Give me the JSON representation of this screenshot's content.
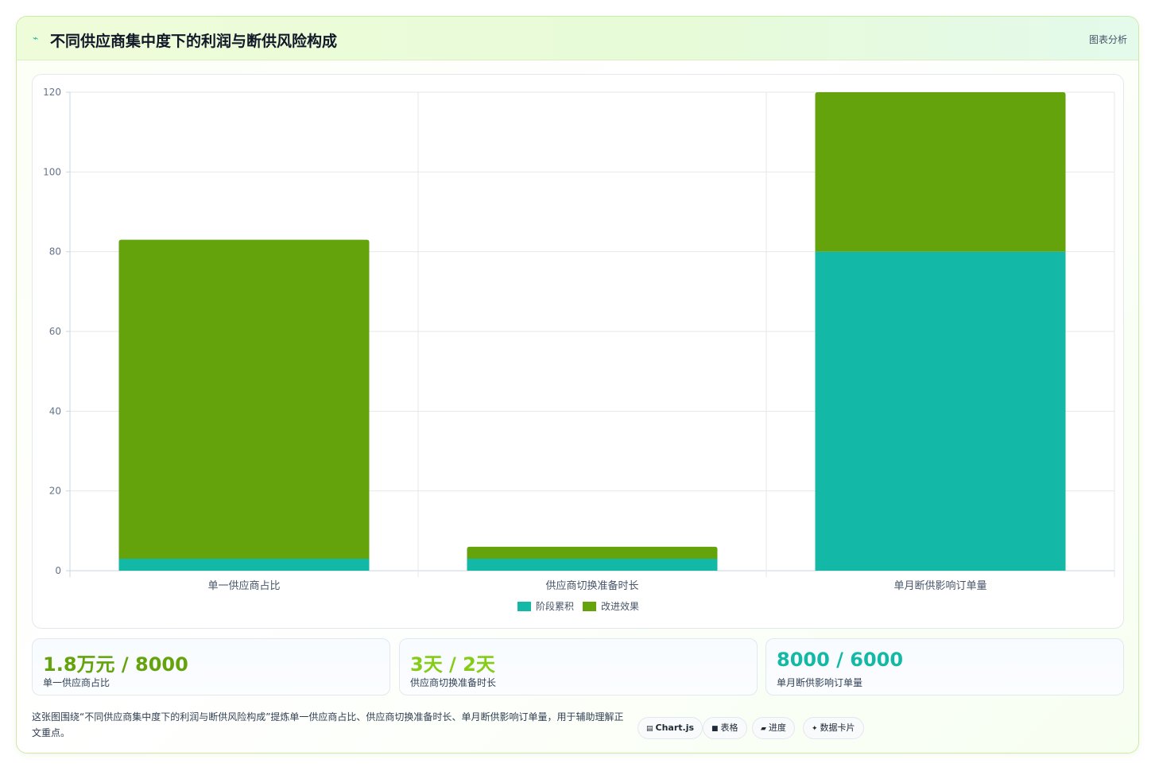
{
  "header": {
    "icon": "chart-pulse-icon",
    "title": "不同供应商集中度下的利润与断供风险构成",
    "action_label": "图表分析"
  },
  "colors": {
    "accent_green": "#65a30d",
    "accent_teal": "#14b8a6",
    "stat_green": "#65a30d",
    "stat_lime": "#84cc16",
    "stat_teal": "#14b8a6"
  },
  "chart_data": {
    "type": "bar",
    "stacked": true,
    "categories": [
      "单一供应商占比",
      "供应商切换准备时长",
      "单月断供影响订单量"
    ],
    "series": [
      {
        "name": "阶段累积",
        "color": "#14b8a6",
        "values": [
          3,
          3,
          80
        ]
      },
      {
        "name": "改进效果",
        "color": "#65a30d",
        "values": [
          80,
          3,
          40
        ]
      }
    ],
    "ylim": [
      0,
      120
    ],
    "yticks": [
      0,
      20,
      40,
      60,
      80,
      100,
      120
    ],
    "grid": true,
    "legend": "bottom"
  },
  "stats": [
    {
      "value": "1.8万元 / 8000",
      "label": "单一供应商占比",
      "color": "#65a30d"
    },
    {
      "value": "3天 / 2天",
      "label": "供应商切换准备时长",
      "color": "#84cc16"
    },
    {
      "value": "8000 / 6000",
      "label": "单月断供影响订单量",
      "color": "#14b8a6"
    }
  ],
  "description": "这张图围绕“不同供应商集中度下的利润与断供风险构成”提炼单一供应商占比、供应商切换准备时长、单月断供影响订单量，用于辅助理解正文重点。",
  "chips": [
    {
      "icon": "chart-icon",
      "glyph": "▤",
      "label": "Chart.js"
    },
    {
      "icon": "table-icon",
      "glyph": "■",
      "label": "表格"
    },
    {
      "icon": "progress-icon",
      "glyph": "▰",
      "label": "进度"
    },
    {
      "icon": "sparkle-icon",
      "glyph": "✦",
      "label": "数据卡片"
    }
  ]
}
